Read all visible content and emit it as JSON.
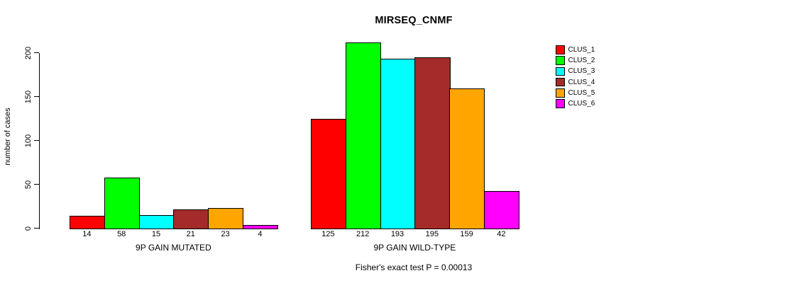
{
  "chart_data": {
    "type": "bar",
    "title": "MIRSEQ_CNMF",
    "ylabel": "number of cases",
    "ylim": [
      0,
      200
    ],
    "yticks": [
      0,
      50,
      100,
      150,
      200
    ],
    "grid": false,
    "legend_position": "right",
    "legend": [
      {
        "label": "CLUS_1",
        "color": "#FF0000"
      },
      {
        "label": "CLUS_2",
        "color": "#00FF00"
      },
      {
        "label": "CLUS_3",
        "color": "#00FFFF"
      },
      {
        "label": "CLUS_4",
        "color": "#A52A2A"
      },
      {
        "label": "CLUS_5",
        "color": "#FFA500"
      },
      {
        "label": "CLUS_6",
        "color": "#FF00FF"
      }
    ],
    "groups": [
      {
        "label": "9P GAIN MUTATED",
        "values": [
          14,
          58,
          15,
          21,
          23,
          4
        ]
      },
      {
        "label": "9P GAIN WILD-TYPE",
        "values": [
          125,
          212,
          193,
          195,
          159,
          42
        ]
      }
    ],
    "bar_value_labels": true,
    "annotation": "Fisher's exact test P = 0.00013",
    "colors": {
      "axis": "#000000",
      "text": "#000000",
      "background": "#FFFFFF"
    }
  }
}
